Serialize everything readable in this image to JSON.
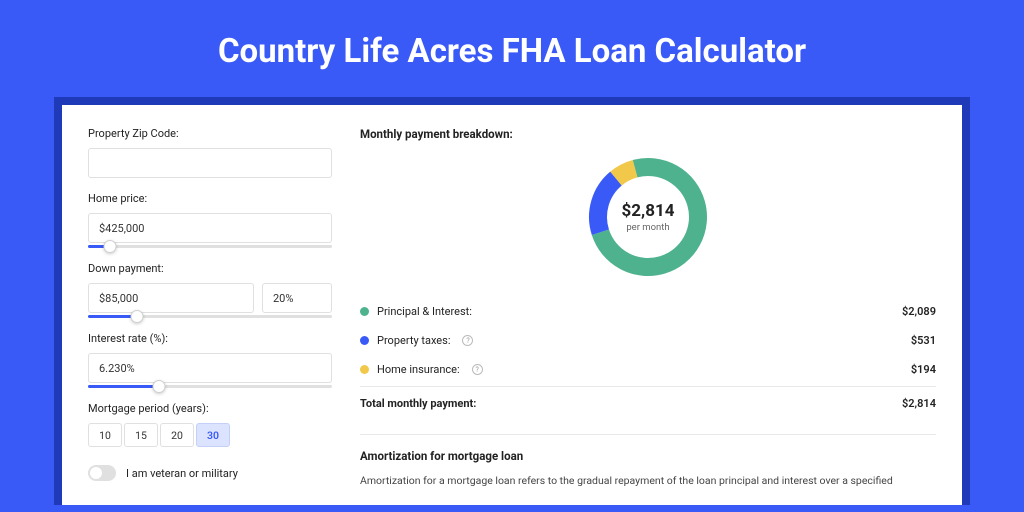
{
  "title": "Country Life Acres FHA Loan Calculator",
  "colors": {
    "page_bg": "#3a5af8",
    "card_wrap_bg": "#1e3ab8",
    "card_bg": "#ffffff",
    "accent": "#3a5af8",
    "principal": "#4eb28f",
    "taxes": "#3a5af8",
    "insurance": "#f2c84b",
    "border": "#e0e0e0"
  },
  "form": {
    "zip": {
      "label": "Property Zip Code:",
      "value": ""
    },
    "price": {
      "label": "Home price:",
      "value": "$425,000",
      "slider_pct": 9
    },
    "down": {
      "label": "Down payment:",
      "value": "$85,000",
      "pct": "20%",
      "slider_pct": 20
    },
    "rate": {
      "label": "Interest rate (%):",
      "value": "6.230%",
      "slider_pct": 29
    },
    "period": {
      "label": "Mortgage period (years):",
      "options": [
        "10",
        "15",
        "20",
        "30"
      ],
      "selected": "30"
    },
    "veteran": {
      "label": "I am veteran or military",
      "on": false
    }
  },
  "breakdown": {
    "title": "Monthly payment breakdown:",
    "total_display": "$2,814",
    "sub": "per month",
    "donut": {
      "radius": 50,
      "stroke": 18,
      "segments": [
        {
          "value": 2089,
          "color": "#4eb28f"
        },
        {
          "value": 531,
          "color": "#3a5af8"
        },
        {
          "value": 194,
          "color": "#f2c84b"
        }
      ]
    },
    "items": [
      {
        "label": "Principal & Interest:",
        "value": "$2,089",
        "color": "#4eb28f",
        "info": false
      },
      {
        "label": "Property taxes:",
        "value": "$531",
        "color": "#3a5af8",
        "info": true
      },
      {
        "label": "Home insurance:",
        "value": "$194",
        "color": "#f2c84b",
        "info": true
      }
    ],
    "total_label": "Total monthly payment:",
    "total_value": "$2,814"
  },
  "amort": {
    "title": "Amortization for mortgage loan",
    "text": "Amortization for a mortgage loan refers to the gradual repayment of the loan principal and interest over a specified"
  }
}
